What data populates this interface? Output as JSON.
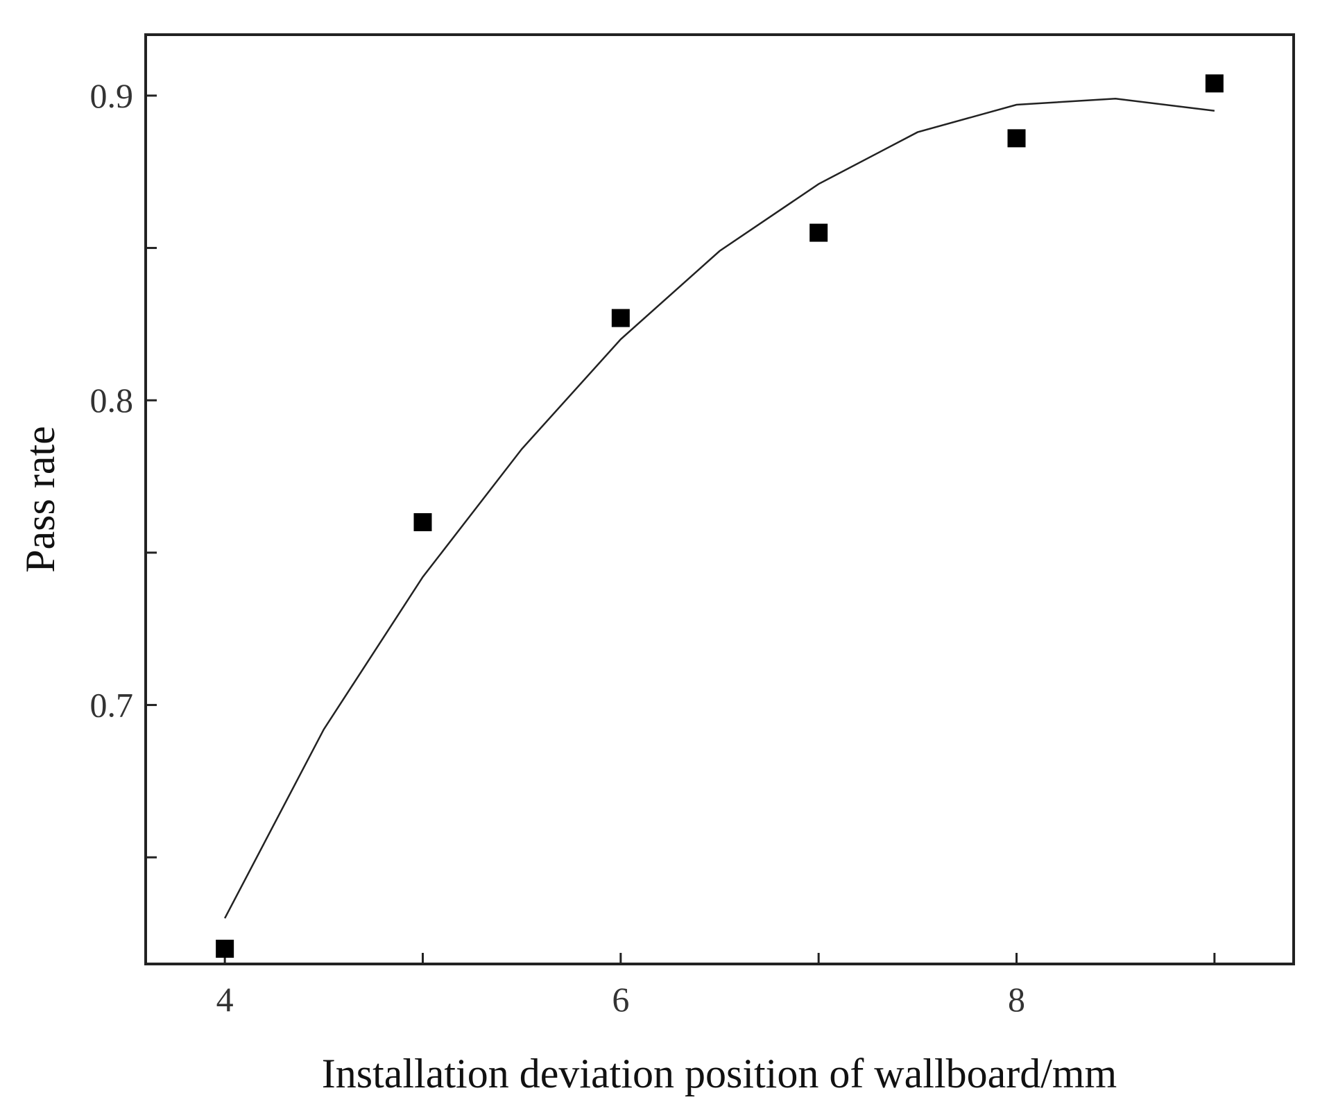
{
  "chart_data": {
    "type": "scatter",
    "xlabel": "Installation deviation position of wallboard/mm",
    "ylabel": "Pass rate",
    "xlim": [
      3.6,
      9.4
    ],
    "ylim": [
      0.615,
      0.92
    ],
    "x_ticks": [
      4,
      5,
      6,
      7,
      8,
      9
    ],
    "x_tick_labels": [
      "4",
      "",
      "6",
      "",
      "8",
      ""
    ],
    "y_ticks": [
      0.65,
      0.7,
      0.75,
      0.8,
      0.85,
      0.9
    ],
    "y_tick_labels": [
      "",
      "0.7",
      "",
      "0.8",
      "",
      "0.9"
    ],
    "grid": false,
    "legend": "none",
    "series": [
      {
        "type": "scatter",
        "marker": "square",
        "color": "#000000",
        "x": [
          4,
          5,
          6,
          7,
          8,
          9
        ],
        "y": [
          0.62,
          0.76,
          0.827,
          0.855,
          0.886,
          0.904
        ]
      },
      {
        "type": "line",
        "fit": "quadratic",
        "color": "#000000",
        "x": [
          4,
          4.5,
          5,
          5.5,
          6,
          6.5,
          7,
          7.5,
          8,
          8.5,
          9
        ],
        "y": [
          0.63,
          0.692,
          0.742,
          0.784,
          0.82,
          0.849,
          0.871,
          0.888,
          0.897,
          0.899,
          0.895
        ]
      }
    ]
  }
}
